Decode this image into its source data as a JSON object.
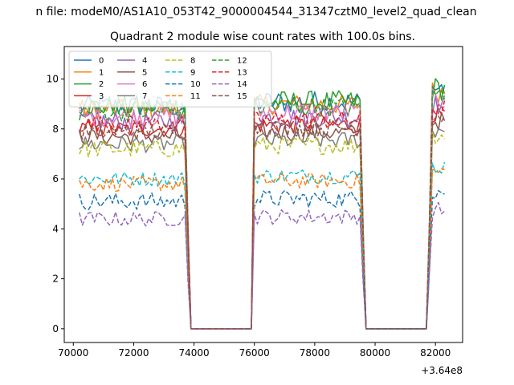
{
  "figure": {
    "suptitle": "n file: modeM0/AS1A10_053T42_9000004544_31347cztM0_level2_quad_clean",
    "title": "Quadrant 2 module wise count rates with 100.0s bins."
  },
  "chart_data": {
    "type": "line",
    "title": "Quadrant 2 module wise count rates with 100.0s bins.",
    "xlabel": "",
    "ylabel": "",
    "x_offset_label": "+3.64e8",
    "xlim": [
      69700,
      82900
    ],
    "ylim": [
      -0.55,
      11.3
    ],
    "xticks": [
      70000,
      72000,
      74000,
      76000,
      78000,
      80000,
      82000
    ],
    "yticks": [
      0,
      2,
      4,
      6,
      8,
      10
    ],
    "grid": false,
    "legend_position": "upper-left",
    "legend_columns": 4,
    "gaps": [
      [
        73900,
        75900
      ],
      [
        79700,
        81700
      ]
    ],
    "segments": [
      [
        70200,
        73800
      ],
      [
        76000,
        79600
      ],
      [
        81800,
        82300
      ]
    ],
    "series": [
      {
        "name": "0",
        "color": "#1f77b4",
        "dash": "solid",
        "level": 8.9,
        "amp": 0.45
      },
      {
        "name": "1",
        "color": "#ff7f0e",
        "dash": "solid",
        "level": 8.8,
        "amp": 0.4
      },
      {
        "name": "2",
        "color": "#2ca02c",
        "dash": "solid",
        "level": 8.9,
        "amp": 0.45
      },
      {
        "name": "3",
        "color": "#d62728",
        "dash": "solid",
        "level": 8.0,
        "amp": 0.35
      },
      {
        "name": "4",
        "color": "#9467bd",
        "dash": "solid",
        "level": 8.3,
        "amp": 0.4
      },
      {
        "name": "5",
        "color": "#8c564b",
        "dash": "solid",
        "level": 7.7,
        "amp": 0.35
      },
      {
        "name": "6",
        "color": "#e377c2",
        "dash": "solid",
        "level": 8.5,
        "amp": 0.4
      },
      {
        "name": "7",
        "color": "#7f7f7f",
        "dash": "solid",
        "level": 7.4,
        "amp": 0.35
      },
      {
        "name": "8",
        "color": "#bcbd22",
        "dash": "dashed",
        "level": 7.2,
        "amp": 0.35
      },
      {
        "name": "9",
        "color": "#17becf",
        "dash": "dashed",
        "level": 6.0,
        "amp": 0.3
      },
      {
        "name": "10",
        "color": "#1f77b4",
        "dash": "dashed",
        "level": 5.1,
        "amp": 0.35
      },
      {
        "name": "11",
        "color": "#ff7f0e",
        "dash": "dashed",
        "level": 5.8,
        "amp": 0.3
      },
      {
        "name": "12",
        "color": "#2ca02c",
        "dash": "dashed",
        "level": 8.7,
        "amp": 0.4
      },
      {
        "name": "13",
        "color": "#d62728",
        "dash": "dashed",
        "level": 8.2,
        "amp": 0.35
      },
      {
        "name": "14",
        "color": "#9467bd",
        "dash": "dashed",
        "level": 4.4,
        "amp": 0.3
      },
      {
        "name": "15",
        "color": "#8c564b",
        "dash": "dashed",
        "level": 7.9,
        "amp": 0.35
      }
    ]
  }
}
